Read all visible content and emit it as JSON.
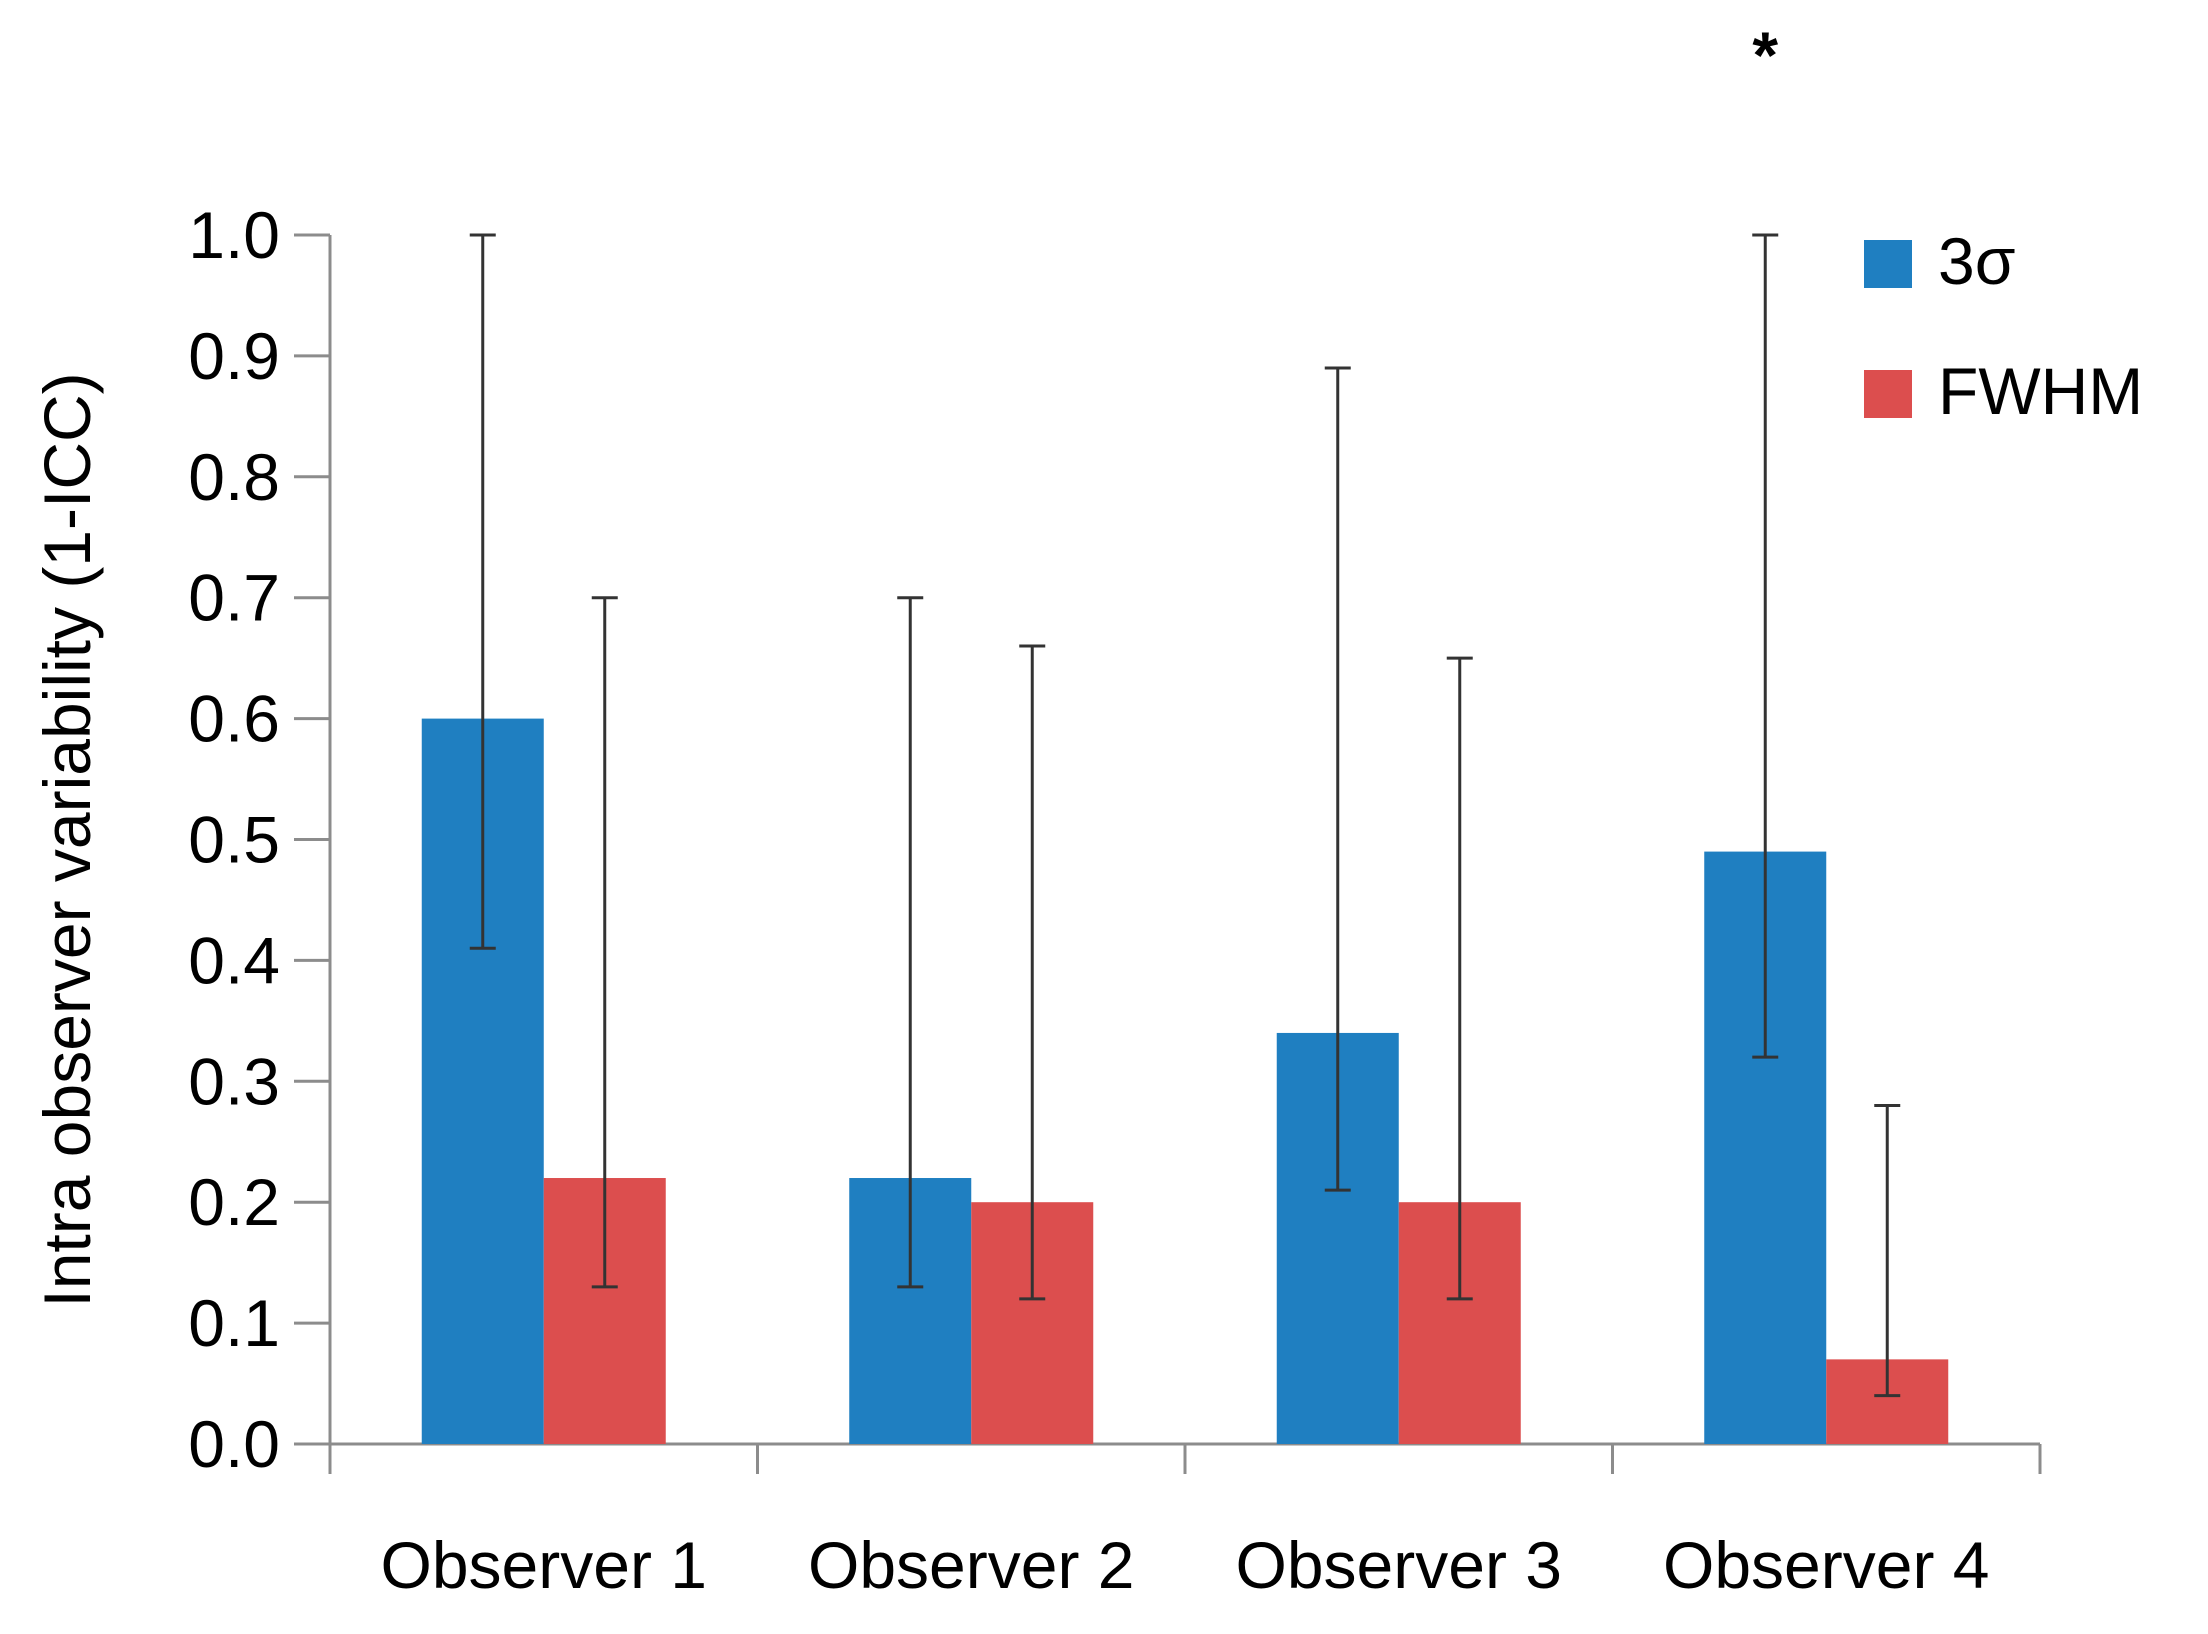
{
  "chart_data": {
    "type": "bar",
    "title": "",
    "xlabel": "",
    "ylabel": "Intra observer variability (1-ICC)",
    "ylim": [
      0,
      1.0
    ],
    "yticks": [
      "0.0",
      "0.1",
      "0.2",
      "0.3",
      "0.4",
      "0.5",
      "0.6",
      "0.7",
      "0.8",
      "0.9",
      "1.0"
    ],
    "categories": [
      "Observer 1",
      "Observer 2",
      "Observer 3",
      "Observer 4"
    ],
    "series": [
      {
        "name": "3σ",
        "color": "#1f7fc1",
        "values": [
          0.6,
          0.22,
          0.34,
          0.49
        ],
        "error_low": [
          0.41,
          0.13,
          0.21,
          0.32
        ],
        "error_high": [
          1.0,
          0.7,
          0.89,
          1.0
        ],
        "error_color": "#333333"
      },
      {
        "name": "FWHM",
        "color": "#dc4e4e",
        "values": [
          0.22,
          0.2,
          0.2,
          0.07
        ],
        "error_low": [
          0.13,
          0.12,
          0.12,
          0.04
        ],
        "error_high": [
          0.7,
          0.66,
          0.65,
          0.28
        ],
        "error_color": "#333333"
      }
    ],
    "legend_position": "top-right",
    "grid": false,
    "annotations": [
      {
        "text": "*",
        "category": "Observer 4",
        "series": "3σ",
        "position": "above-error-bar"
      }
    ]
  }
}
